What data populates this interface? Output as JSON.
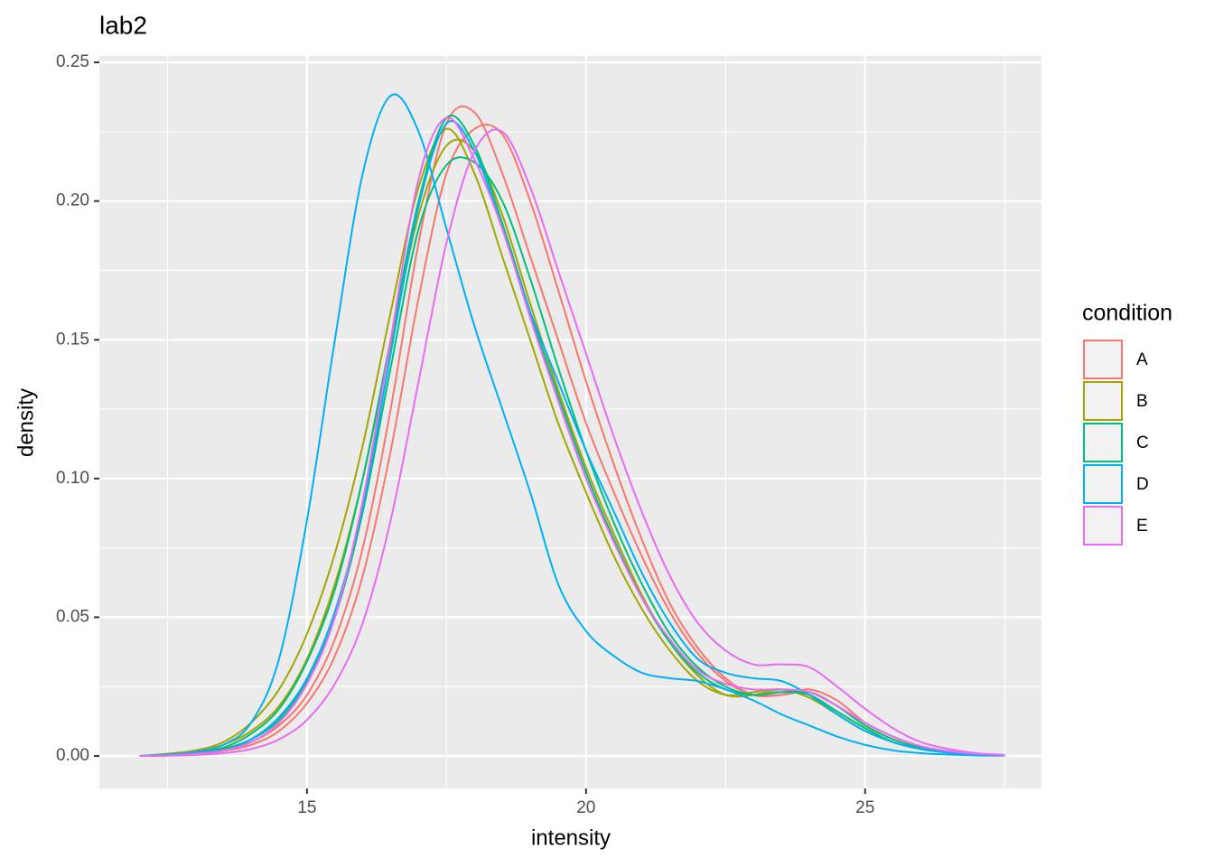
{
  "chart_data": {
    "type": "density",
    "title": "lab2",
    "x_label": "intensity",
    "y_label": "density",
    "legend_title": "condition",
    "x": [
      12,
      12.5,
      13,
      13.5,
      14,
      14.5,
      15,
      15.5,
      16,
      16.5,
      17,
      17.5,
      18,
      18.5,
      19,
      19.5,
      20,
      20.5,
      21,
      21.5,
      22,
      22.5,
      23,
      23.5,
      24,
      24.5,
      25,
      25.5,
      26,
      26.5,
      27,
      27.5
    ],
    "xlim": [
      11.28,
      28.16
    ],
    "ylim": [
      -0.0117,
      0.2523
    ],
    "xticks": [
      15,
      20,
      25
    ],
    "yticks": [
      {
        "value": 0,
        "label": "0.00"
      },
      {
        "value": 0.05,
        "label": "0.05"
      },
      {
        "value": 0.1,
        "label": "0.10"
      },
      {
        "value": 0.15,
        "label": "0.15"
      },
      {
        "value": 0.2,
        "label": "0.20"
      },
      {
        "value": 0.25,
        "label": "0.25"
      }
    ],
    "grid": true,
    "series": [
      {
        "name": "A",
        "color": "#F8766D",
        "lines": [
          [
            0,
            0.0003,
            0.001,
            0.002,
            0.005,
            0.011,
            0.022,
            0.042,
            0.075,
            0.125,
            0.185,
            0.228,
            0.232,
            0.21,
            0.18,
            0.15,
            0.12,
            0.095,
            0.072,
            0.052,
            0.037,
            0.027,
            0.022,
            0.022,
            0.023,
            0.018,
            0.011,
            0.006,
            0.003,
            0.0015,
            0.0007,
            0.0003
          ],
          [
            0,
            0.0002,
            0.0008,
            0.0018,
            0.004,
            0.009,
            0.019,
            0.036,
            0.065,
            0.11,
            0.165,
            0.21,
            0.226,
            0.224,
            0.2,
            0.168,
            0.135,
            0.105,
            0.078,
            0.055,
            0.039,
            0.028,
            0.022,
            0.022,
            0.024,
            0.02,
            0.012,
            0.007,
            0.0035,
            0.0017,
            0.0008,
            0.0003
          ]
        ]
      },
      {
        "name": "B",
        "color": "#A3A500",
        "lines": [
          [
            0,
            0.0008,
            0.002,
            0.005,
            0.012,
            0.024,
            0.044,
            0.073,
            0.112,
            0.16,
            0.205,
            0.226,
            0.21,
            0.18,
            0.15,
            0.12,
            0.095,
            0.072,
            0.053,
            0.038,
            0.027,
            0.022,
            0.023,
            0.024,
            0.021,
            0.015,
            0.009,
            0.005,
            0.0025,
            0.0012,
            0.0005,
            0.0002
          ],
          [
            0,
            0.0005,
            0.0015,
            0.004,
            0.009,
            0.018,
            0.035,
            0.062,
            0.1,
            0.148,
            0.195,
            0.22,
            0.218,
            0.195,
            0.163,
            0.132,
            0.104,
            0.08,
            0.058,
            0.041,
            0.029,
            0.022,
            0.022,
            0.024,
            0.022,
            0.016,
            0.01,
            0.005,
            0.0025,
            0.0012,
            0.0005,
            0.0002
          ]
        ]
      },
      {
        "name": "C",
        "color": "#00BF7D",
        "lines": [
          [
            0,
            0.0004,
            0.0012,
            0.003,
            0.008,
            0.017,
            0.034,
            0.06,
            0.1,
            0.15,
            0.2,
            0.23,
            0.22,
            0.192,
            0.16,
            0.13,
            0.102,
            0.078,
            0.057,
            0.041,
            0.03,
            0.024,
            0.022,
            0.023,
            0.022,
            0.016,
            0.01,
            0.005,
            0.0025,
            0.0012,
            0.0005,
            0.0002
          ],
          [
            0,
            0.0003,
            0.001,
            0.0025,
            0.006,
            0.013,
            0.027,
            0.05,
            0.088,
            0.14,
            0.19,
            0.213,
            0.214,
            0.2,
            0.172,
            0.14,
            0.11,
            0.084,
            0.062,
            0.044,
            0.032,
            0.025,
            0.022,
            0.023,
            0.023,
            0.018,
            0.011,
            0.006,
            0.003,
            0.0014,
            0.0006,
            0.0002
          ]
        ]
      },
      {
        "name": "D",
        "color": "#00B0F6",
        "lines": [
          [
            0,
            0.0005,
            0.0015,
            0.004,
            0.012,
            0.035,
            0.085,
            0.15,
            0.21,
            0.238,
            0.225,
            0.19,
            0.155,
            0.125,
            0.095,
            0.062,
            0.045,
            0.036,
            0.03,
            0.028,
            0.027,
            0.024,
            0.02,
            0.015,
            0.011,
            0.007,
            0.004,
            0.002,
            0.001,
            0.0005,
            0.0002,
            0.0001
          ],
          [
            0,
            0.0002,
            0.0008,
            0.002,
            0.006,
            0.014,
            0.028,
            0.052,
            0.09,
            0.145,
            0.198,
            0.228,
            0.218,
            0.19,
            0.16,
            0.135,
            0.11,
            0.088,
            0.066,
            0.048,
            0.035,
            0.03,
            0.028,
            0.027,
            0.022,
            0.015,
            0.009,
            0.005,
            0.0025,
            0.0012,
            0.0005,
            0.0002
          ]
        ]
      },
      {
        "name": "E",
        "color": "#E76BF3",
        "lines": [
          [
            0,
            0.0001,
            0.0004,
            0.001,
            0.0025,
            0.006,
            0.013,
            0.026,
            0.048,
            0.085,
            0.135,
            0.185,
            0.218,
            0.225,
            0.205,
            0.175,
            0.145,
            0.115,
            0.088,
            0.065,
            0.048,
            0.038,
            0.033,
            0.033,
            0.032,
            0.025,
            0.017,
            0.01,
            0.005,
            0.0025,
            0.001,
            0.0004
          ],
          [
            0,
            0.0002,
            0.0008,
            0.002,
            0.005,
            0.012,
            0.026,
            0.05,
            0.092,
            0.15,
            0.208,
            0.23,
            0.215,
            0.19,
            0.158,
            0.128,
            0.1,
            0.077,
            0.057,
            0.042,
            0.031,
            0.026,
            0.024,
            0.024,
            0.023,
            0.018,
            0.012,
            0.007,
            0.0035,
            0.0017,
            0.0008,
            0.0003
          ]
        ]
      }
    ]
  }
}
